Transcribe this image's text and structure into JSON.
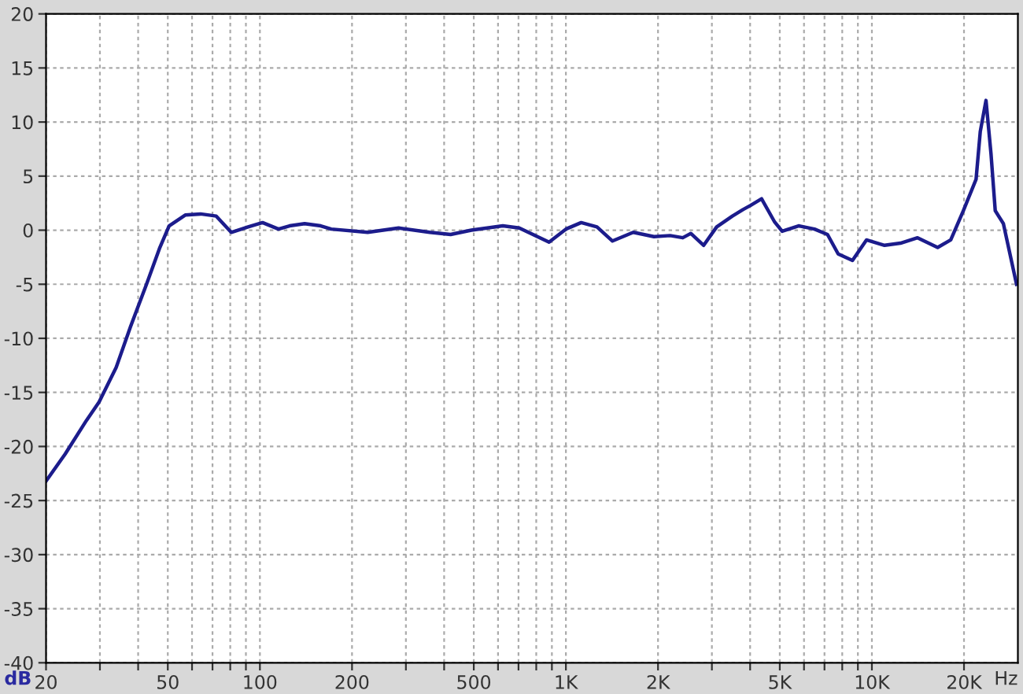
{
  "chart_data": {
    "type": "line",
    "xlabel": "Hz",
    "ylabel": "dB",
    "log": "x",
    "grid": true,
    "marker": "none",
    "line_style": "solid",
    "xlim": [
      20,
      30000
    ],
    "ylim": [
      -40,
      20
    ],
    "xticks": [
      20,
      {
        "value": 30,
        "label": null
      },
      {
        "value": 40,
        "label": null
      },
      50,
      {
        "value": 60,
        "label": null
      },
      {
        "value": 70,
        "label": null
      },
      {
        "value": 80,
        "label": null
      },
      {
        "value": 90,
        "label": null
      },
      100,
      200,
      {
        "value": 300,
        "label": null
      },
      {
        "value": 400,
        "label": null
      },
      500,
      {
        "value": 600,
        "label": null
      },
      {
        "value": 700,
        "label": null
      },
      {
        "value": 800,
        "label": null
      },
      {
        "value": 900,
        "label": null
      },
      {
        "value": 1000,
        "label": "1K"
      },
      {
        "value": 2000,
        "label": "2K"
      },
      {
        "value": 3000,
        "label": null
      },
      {
        "value": 4000,
        "label": null
      },
      {
        "value": 5000,
        "label": "5K"
      },
      {
        "value": 6000,
        "label": null
      },
      {
        "value": 7000,
        "label": null
      },
      {
        "value": 8000,
        "label": null
      },
      {
        "value": 9000,
        "label": null
      },
      {
        "value": 10000,
        "label": "10K"
      },
      {
        "value": 20000,
        "label": "20K"
      }
    ],
    "yticks": [
      -40,
      -35,
      -30,
      -25,
      -20,
      -15,
      -10,
      -5,
      0,
      5,
      10,
      15,
      20
    ],
    "series": [
      {
        "color": "#1c1c8c",
        "x": [
          20,
          23.1,
          27.1,
          29.8,
          33.9,
          37.8,
          42.6,
          47.1,
          50.5,
          57,
          64,
          72,
          80.6,
          91.5,
          102,
          115,
          125,
          140,
          158,
          171,
          225,
          284,
          359,
          420,
          491,
          622,
          704,
          881,
          1000,
          1122,
          1263,
          1420,
          1660,
          1940,
          2190,
          2410,
          2560,
          2820,
          3110,
          3500,
          3790,
          4020,
          4360,
          4800,
          5090,
          5760,
          6490,
          7160,
          7760,
          8640,
          9600,
          11000,
          12400,
          14100,
          16400,
          18100,
          19900,
          21900,
          22600,
          23600,
          24500,
          25300,
          26900,
          29700
        ],
        "values": [
          -23.2,
          -20.7,
          -17.6,
          -15.9,
          -12.7,
          -8.9,
          -5.0,
          -1.6,
          0.4,
          1.4,
          1.5,
          1.3,
          -0.2,
          0.3,
          0.7,
          0.1,
          0.4,
          0.6,
          0.4,
          0.1,
          -0.2,
          0.2,
          -0.2,
          -0.4,
          0.0,
          0.4,
          0.2,
          -1.1,
          0.1,
          0.7,
          0.3,
          -1.0,
          -0.2,
          -0.6,
          -0.5,
          -0.7,
          -0.3,
          -1.4,
          0.3,
          1.3,
          1.9,
          2.3,
          2.9,
          0.8,
          -0.1,
          0.4,
          0.1,
          -0.4,
          -2.2,
          -2.8,
          -0.9,
          -1.4,
          -1.2,
          -0.7,
          -1.6,
          -0.9,
          1.8,
          4.7,
          9.1,
          12.0,
          7.1,
          1.8,
          0.6,
          -5.0
        ]
      }
    ]
  }
}
